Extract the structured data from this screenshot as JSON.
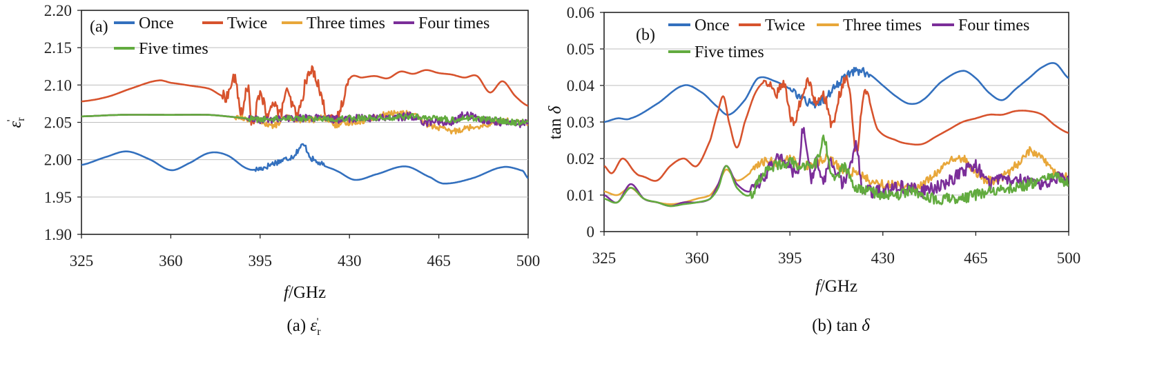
{
  "colors": {
    "Once": "#3370be",
    "Twice": "#d7532d",
    "Three times": "#e8a73a",
    "Four times": "#7b2e99",
    "Five times": "#62ab3f"
  },
  "legend_labels": [
    "Once",
    "Twice",
    "Three times",
    "Four times",
    "Five times"
  ],
  "chart_data": [
    {
      "type": "line",
      "panel_tag": "(a)",
      "caption": "(a) εr'",
      "xlabel": "f/GHz",
      "ylabel": "εr'",
      "xlim": [
        325,
        500
      ],
      "ylim": [
        1.9,
        2.2
      ],
      "xticks": [
        325,
        360,
        395,
        430,
        465,
        500
      ],
      "yticks": [
        "1.90",
        "1.95",
        "2.00",
        "2.05",
        "2.10",
        "2.15",
        "2.20"
      ],
      "legend_position": "top, inside plot",
      "grid": "horizontal",
      "series": [
        {
          "name": "Once",
          "x": [
            325,
            335,
            343,
            352,
            360,
            367,
            375,
            382,
            390,
            395,
            400,
            408,
            412,
            415,
            420,
            425,
            432,
            440,
            452,
            462,
            467,
            478,
            490,
            498,
            500
          ],
          "y": [
            1.993,
            2.004,
            2.011,
            2.0,
            1.986,
            1.995,
            2.009,
            2.006,
            1.988,
            1.988,
            1.995,
            2.005,
            2.019,
            2.002,
            1.992,
            1.985,
            1.973,
            1.98,
            1.991,
            1.976,
            1.968,
            1.975,
            1.99,
            1.985,
            1.975
          ],
          "noise_from": 393,
          "noise_to": 420,
          "noise_amp": 0.004
        },
        {
          "name": "Twice",
          "x": [
            325,
            335,
            345,
            355,
            360,
            368,
            375,
            382,
            385,
            388,
            390,
            392,
            395,
            398,
            400,
            403,
            405,
            408,
            410,
            413,
            416,
            419,
            421,
            425,
            430,
            435,
            440,
            445,
            450,
            455,
            460,
            465,
            470,
            475,
            480,
            485,
            490,
            495,
            500
          ],
          "y": [
            2.078,
            2.084,
            2.096,
            2.106,
            2.103,
            2.099,
            2.095,
            2.085,
            2.108,
            2.06,
            2.1,
            2.045,
            2.09,
            2.055,
            2.08,
            2.06,
            2.09,
            2.07,
            2.062,
            2.105,
            2.118,
            2.085,
            2.06,
            2.055,
            2.108,
            2.11,
            2.112,
            2.109,
            2.118,
            2.115,
            2.12,
            2.116,
            2.114,
            2.11,
            2.112,
            2.09,
            2.105,
            2.085,
            2.072
          ],
          "noise_from": 380,
          "noise_to": 430,
          "noise_amp": 0.008
        },
        {
          "name": "Three times",
          "x": [
            325,
            340,
            360,
            375,
            385,
            390,
            395,
            400,
            405,
            410,
            415,
            420,
            425,
            430,
            435,
            440,
            445,
            450,
            455,
            460,
            465,
            470,
            475,
            480,
            485,
            490,
            495,
            500
          ],
          "y": [
            2.058,
            2.06,
            2.06,
            2.06,
            2.057,
            2.055,
            2.053,
            2.045,
            2.056,
            2.054,
            2.053,
            2.056,
            2.046,
            2.05,
            2.052,
            2.057,
            2.061,
            2.062,
            2.06,
            2.048,
            2.043,
            2.038,
            2.042,
            2.045,
            2.048,
            2.052,
            2.05,
            2.05
          ],
          "noise_from": 385,
          "noise_to": 500,
          "noise_amp": 0.004
        },
        {
          "name": "Four times",
          "x": [
            325,
            340,
            360,
            375,
            385,
            395,
            405,
            415,
            425,
            430,
            440,
            450,
            455,
            460,
            465,
            470,
            475,
            480,
            485,
            490,
            495,
            500
          ],
          "y": [
            2.058,
            2.06,
            2.06,
            2.06,
            2.057,
            2.053,
            2.055,
            2.056,
            2.054,
            2.055,
            2.056,
            2.057,
            2.058,
            2.05,
            2.052,
            2.049,
            2.06,
            2.055,
            2.052,
            2.05,
            2.048,
            2.049
          ],
          "noise_from": 390,
          "noise_to": 500,
          "noise_amp": 0.005
        },
        {
          "name": "Five times",
          "x": [
            325,
            340,
            360,
            375,
            385,
            395,
            405,
            415,
            425,
            430,
            440,
            450,
            455,
            460,
            465,
            470,
            475,
            480,
            485,
            490,
            495,
            500
          ],
          "y": [
            2.058,
            2.06,
            2.06,
            2.06,
            2.057,
            2.054,
            2.056,
            2.055,
            2.055,
            2.056,
            2.056,
            2.057,
            2.058,
            2.055,
            2.056,
            2.053,
            2.056,
            2.055,
            2.054,
            2.052,
            2.05,
            2.052
          ],
          "noise_from": 390,
          "noise_to": 500,
          "noise_amp": 0.004
        }
      ]
    },
    {
      "type": "line",
      "panel_tag": "(b)",
      "caption": "(b) tan δ",
      "xlabel": "f/GHz",
      "ylabel": "tan δ",
      "xlim": [
        325,
        500
      ],
      "ylim": [
        0,
        0.06
      ],
      "xticks": [
        325,
        360,
        395,
        430,
        465,
        500
      ],
      "yticks": [
        "0",
        "0.01",
        "0.02",
        "0.03",
        "0.04",
        "0.05",
        "0.06"
      ],
      "legend_position": "top, inside plot",
      "grid": "horizontal",
      "series": [
        {
          "name": "Once",
          "x": [
            325,
            330,
            335,
            345,
            355,
            362,
            368,
            372,
            378,
            383,
            390,
            395,
            400,
            405,
            410,
            415,
            420,
            425,
            430,
            435,
            440,
            445,
            452,
            460,
            465,
            470,
            475,
            480,
            485,
            490,
            495,
            500
          ],
          "y": [
            0.03,
            0.031,
            0.031,
            0.035,
            0.04,
            0.038,
            0.034,
            0.032,
            0.036,
            0.042,
            0.041,
            0.039,
            0.036,
            0.035,
            0.038,
            0.042,
            0.044,
            0.043,
            0.04,
            0.037,
            0.035,
            0.036,
            0.041,
            0.044,
            0.042,
            0.038,
            0.036,
            0.039,
            0.042,
            0.045,
            0.046,
            0.042
          ],
          "noise_from": 395,
          "noise_to": 425,
          "noise_amp": 0.0012
        },
        {
          "name": "Twice",
          "x": [
            325,
            328,
            332,
            337,
            340,
            345,
            350,
            355,
            360,
            365,
            368,
            370,
            372,
            375,
            378,
            382,
            386,
            390,
            393,
            396,
            399,
            402,
            405,
            408,
            411,
            414,
            417,
            420,
            423,
            428,
            435,
            440,
            445,
            450,
            455,
            460,
            465,
            470,
            475,
            480,
            485,
            490,
            495,
            500
          ],
          "y": [
            0.018,
            0.016,
            0.02,
            0.016,
            0.015,
            0.014,
            0.018,
            0.02,
            0.018,
            0.025,
            0.033,
            0.037,
            0.03,
            0.023,
            0.03,
            0.038,
            0.041,
            0.038,
            0.04,
            0.03,
            0.036,
            0.041,
            0.035,
            0.037,
            0.029,
            0.038,
            0.041,
            0.022,
            0.038,
            0.028,
            0.025,
            0.024,
            0.024,
            0.026,
            0.028,
            0.03,
            0.031,
            0.032,
            0.032,
            0.033,
            0.033,
            0.032,
            0.029,
            0.027
          ],
          "noise_from": 385,
          "noise_to": 425,
          "noise_amp": 0.0015
        },
        {
          "name": "Three times",
          "x": [
            325,
            330,
            335,
            340,
            345,
            350,
            355,
            360,
            365,
            368,
            371,
            375,
            380,
            385,
            390,
            395,
            400,
            405,
            410,
            415,
            420,
            425,
            430,
            435,
            440,
            445,
            450,
            455,
            460,
            465,
            470,
            475,
            480,
            485,
            490,
            495,
            500
          ],
          "y": [
            0.011,
            0.01,
            0.012,
            0.009,
            0.008,
            0.0075,
            0.008,
            0.009,
            0.01,
            0.013,
            0.017,
            0.014,
            0.016,
            0.019,
            0.019,
            0.02,
            0.018,
            0.019,
            0.02,
            0.017,
            0.016,
            0.014,
            0.013,
            0.013,
            0.012,
            0.013,
            0.016,
            0.019,
            0.02,
            0.016,
            0.014,
            0.015,
            0.018,
            0.022,
            0.02,
            0.016,
            0.015
          ],
          "noise_from": 380,
          "noise_to": 500,
          "noise_amp": 0.0012
        },
        {
          "name": "Four times",
          "x": [
            325,
            330,
            335,
            340,
            345,
            350,
            355,
            360,
            365,
            368,
            371,
            375,
            380,
            385,
            390,
            395,
            398,
            400,
            403,
            405,
            408,
            410,
            413,
            415,
            418,
            420,
            422,
            425,
            430,
            435,
            440,
            445,
            450,
            455,
            460,
            465,
            470,
            475,
            480,
            485,
            490,
            495,
            500
          ],
          "y": [
            0.01,
            0.008,
            0.013,
            0.009,
            0.008,
            0.007,
            0.008,
            0.008,
            0.009,
            0.013,
            0.018,
            0.013,
            0.011,
            0.015,
            0.02,
            0.018,
            0.016,
            0.028,
            0.015,
            0.019,
            0.014,
            0.02,
            0.016,
            0.013,
            0.018,
            0.024,
            0.012,
            0.011,
            0.011,
            0.012,
            0.012,
            0.011,
            0.012,
            0.014,
            0.016,
            0.018,
            0.013,
            0.015,
            0.014,
            0.014,
            0.013,
            0.015,
            0.014
          ],
          "noise_from": 380,
          "noise_to": 500,
          "noise_amp": 0.0018
        },
        {
          "name": "Five times",
          "x": [
            325,
            330,
            335,
            340,
            345,
            350,
            355,
            360,
            365,
            368,
            371,
            375,
            380,
            385,
            390,
            395,
            400,
            405,
            408,
            410,
            413,
            415,
            420,
            425,
            430,
            435,
            440,
            445,
            450,
            455,
            460,
            465,
            470,
            475,
            480,
            485,
            490,
            495,
            500
          ],
          "y": [
            0.009,
            0.008,
            0.012,
            0.009,
            0.008,
            0.007,
            0.0075,
            0.008,
            0.009,
            0.012,
            0.018,
            0.012,
            0.01,
            0.016,
            0.018,
            0.019,
            0.018,
            0.019,
            0.025,
            0.017,
            0.015,
            0.018,
            0.012,
            0.011,
            0.01,
            0.01,
            0.011,
            0.01,
            0.009,
            0.009,
            0.009,
            0.01,
            0.011,
            0.012,
            0.012,
            0.013,
            0.014,
            0.015,
            0.013
          ],
          "noise_from": 380,
          "noise_to": 500,
          "noise_amp": 0.0015
        }
      ]
    }
  ]
}
